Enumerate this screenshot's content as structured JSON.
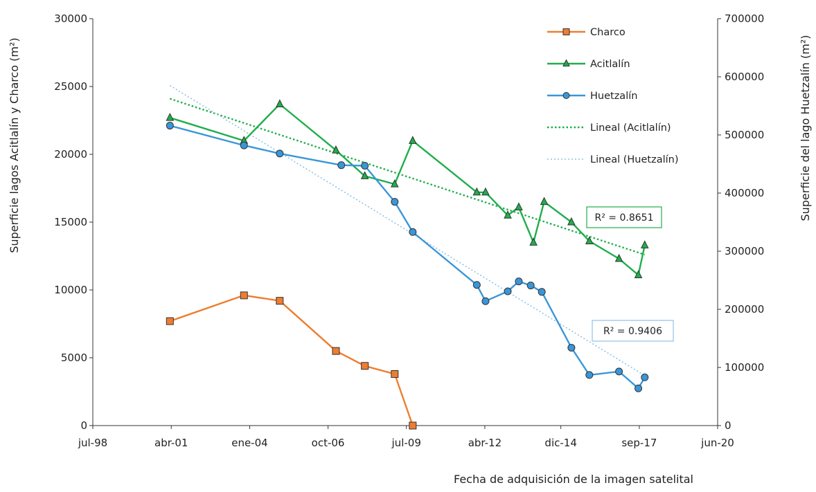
{
  "chart_data": {
    "type": "line",
    "xlabel": "Fecha de adquisición de la imagen satelital",
    "ylabel_left": "Superficie lagos Acitlalín y Charco (m²)",
    "ylabel_right": "Superficie del lago Huetzalín (m²)",
    "x_range": [
      "1998-07-01",
      "2020-06-01"
    ],
    "x_ticks": [
      {
        "date": "1998-07-01",
        "label": "jul-98"
      },
      {
        "date": "2001-04-01",
        "label": "abr-01"
      },
      {
        "date": "2004-01-01",
        "label": "ene-04"
      },
      {
        "date": "2006-10-01",
        "label": "oct-06"
      },
      {
        "date": "2009-07-01",
        "label": "jul-09"
      },
      {
        "date": "2012-04-01",
        "label": "abr-12"
      },
      {
        "date": "2014-12-01",
        "label": "dic-14"
      },
      {
        "date": "2017-09-01",
        "label": "sep-17"
      },
      {
        "date": "2020-06-01",
        "label": "jun-20"
      }
    ],
    "y_left": {
      "range": [
        0,
        30000
      ],
      "ticks": [
        "0",
        "5000",
        "10000",
        "15000",
        "20000",
        "25000",
        "30000"
      ],
      "tick_values": [
        0,
        5000,
        10000,
        15000,
        20000,
        25000,
        30000
      ]
    },
    "y_right": {
      "range": [
        0,
        700000
      ],
      "ticks": [
        "0",
        "100000",
        "200000",
        "300000",
        "400000",
        "500000",
        "600000",
        "700000"
      ],
      "tick_values": [
        0,
        100000,
        200000,
        300000,
        400000,
        500000,
        600000,
        700000
      ]
    },
    "grid": false,
    "legend_position": "top-right",
    "series": [
      {
        "name": "Charco",
        "axis": "left",
        "color": "#ed7d31",
        "marker": "square",
        "points": [
          [
            "2001-03-15",
            7700
          ],
          [
            "2003-10-20",
            9600
          ],
          [
            "2005-01-20",
            9200
          ],
          [
            "2007-01-10",
            5500
          ],
          [
            "2008-01-15",
            4400
          ],
          [
            "2009-02-01",
            3800
          ],
          [
            "2009-09-20",
            0
          ]
        ]
      },
      {
        "name": "Acitlalín",
        "axis": "left",
        "color": "#1fae4b",
        "marker": "triangle",
        "points": [
          [
            "2001-03-15",
            22700
          ],
          [
            "2003-10-20",
            21000
          ],
          [
            "2005-01-20",
            23700
          ],
          [
            "2007-01-10",
            20300
          ],
          [
            "2008-01-15",
            18400
          ],
          [
            "2009-02-01",
            17800
          ],
          [
            "2009-09-20",
            21000
          ],
          [
            "2011-12-20",
            17200
          ],
          [
            "2012-04-10",
            17200
          ],
          [
            "2013-01-20",
            15500
          ],
          [
            "2013-06-10",
            16100
          ],
          [
            "2013-12-15",
            13500
          ],
          [
            "2014-05-01",
            16500
          ],
          [
            "2015-04-15",
            15000
          ],
          [
            "2015-12-01",
            13600
          ],
          [
            "2016-12-15",
            12300
          ],
          [
            "2017-08-20",
            11100
          ],
          [
            "2017-11-10",
            13300
          ]
        ]
      },
      {
        "name": "Huetzalín",
        "axis": "right",
        "color": "#3a96d8",
        "marker": "circle",
        "points": [
          [
            "2001-03-15",
            516000
          ],
          [
            "2003-10-20",
            482000
          ],
          [
            "2005-01-20",
            468000
          ],
          [
            "2007-03-20",
            448000
          ],
          [
            "2008-01-15",
            447000
          ],
          [
            "2009-02-01",
            385000
          ],
          [
            "2009-09-20",
            333000
          ],
          [
            "2011-12-20",
            242000
          ],
          [
            "2012-04-10",
            214000
          ],
          [
            "2013-01-20",
            231000
          ],
          [
            "2013-06-10",
            248000
          ],
          [
            "2013-11-10",
            241000
          ],
          [
            "2014-04-01",
            230000
          ],
          [
            "2015-04-15",
            134000
          ],
          [
            "2015-12-01",
            87000
          ],
          [
            "2016-12-15",
            93000
          ],
          [
            "2017-08-20",
            64000
          ],
          [
            "2017-11-10",
            83000
          ]
        ]
      }
    ],
    "trendlines": [
      {
        "name": "Lineal (Acitlalín)",
        "axis": "left",
        "color": "#1fae4b",
        "dash": "dotted",
        "from": [
          "2001-03-15",
          24100
        ],
        "to": [
          "2017-11-10",
          12600
        ],
        "r2": "R² = 0.8651"
      },
      {
        "name": "Lineal (Huetzalín)",
        "axis": "right",
        "color": "#8fc1e6",
        "dash": "dotted",
        "from": [
          "2001-03-15",
          585000
        ],
        "to": [
          "2017-11-10",
          86000
        ],
        "r2": "R² = 0.9406"
      }
    ]
  }
}
